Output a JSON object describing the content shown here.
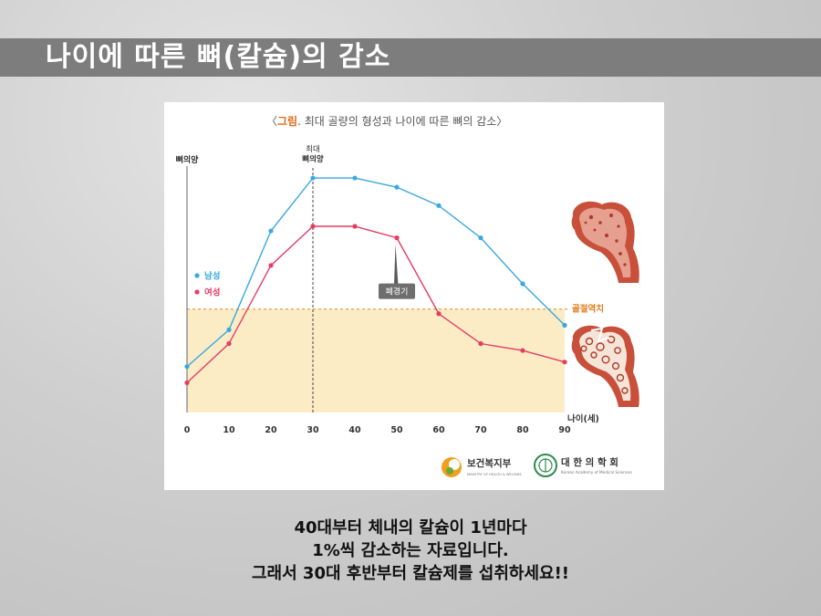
{
  "slide": {
    "title": "나이에 따른 뼈(칼슘)의 감소",
    "caption_lines": [
      "40대부터 체내의 칼슘이 1년마다",
      "1%씩 감소하는 자료입니다.",
      "그래서 30대 후반부터 칼슘제를 섭취하세요!!"
    ]
  },
  "figure": {
    "caption_open": "〈",
    "caption_prefix": "그림",
    "caption_rest": ". 최대 골량의 형성과 나이에 따른 뼈의 감소〉",
    "peak_label_line1": "최대",
    "peak_label_line2": "뼈의양",
    "menopause_label": "폐경기",
    "fracture_label": "골절역치",
    "logos": {
      "ministry_name": "보건복지부",
      "ministry_sub": "MINISTRY OF HEALTH & WELFARE",
      "academy_name": "대 한 의 학 회",
      "academy_sub": "Korean Academy of Medical Sciences"
    }
  },
  "chart_data": {
    "type": "line",
    "title": "",
    "xlabel": "나이(세)",
    "ylabel": "뼈의양",
    "x": [
      0,
      10,
      20,
      30,
      40,
      50,
      60,
      70,
      80,
      90
    ],
    "xlim": [
      0,
      90
    ],
    "ylim": [
      0,
      100
    ],
    "grid": false,
    "legend_position": "left-middle",
    "series": [
      {
        "name": "남성",
        "color": "#3aa8e0",
        "values": [
          14,
          30,
          73,
          96,
          96,
          92,
          84,
          70,
          50,
          32
        ]
      },
      {
        "name": "여성",
        "color": "#e63b63",
        "values": [
          7,
          24,
          58,
          75,
          75,
          70,
          37,
          24,
          21,
          16
        ]
      }
    ],
    "fracture_threshold": 39,
    "peak_age": 30,
    "menopause_age": 50
  }
}
